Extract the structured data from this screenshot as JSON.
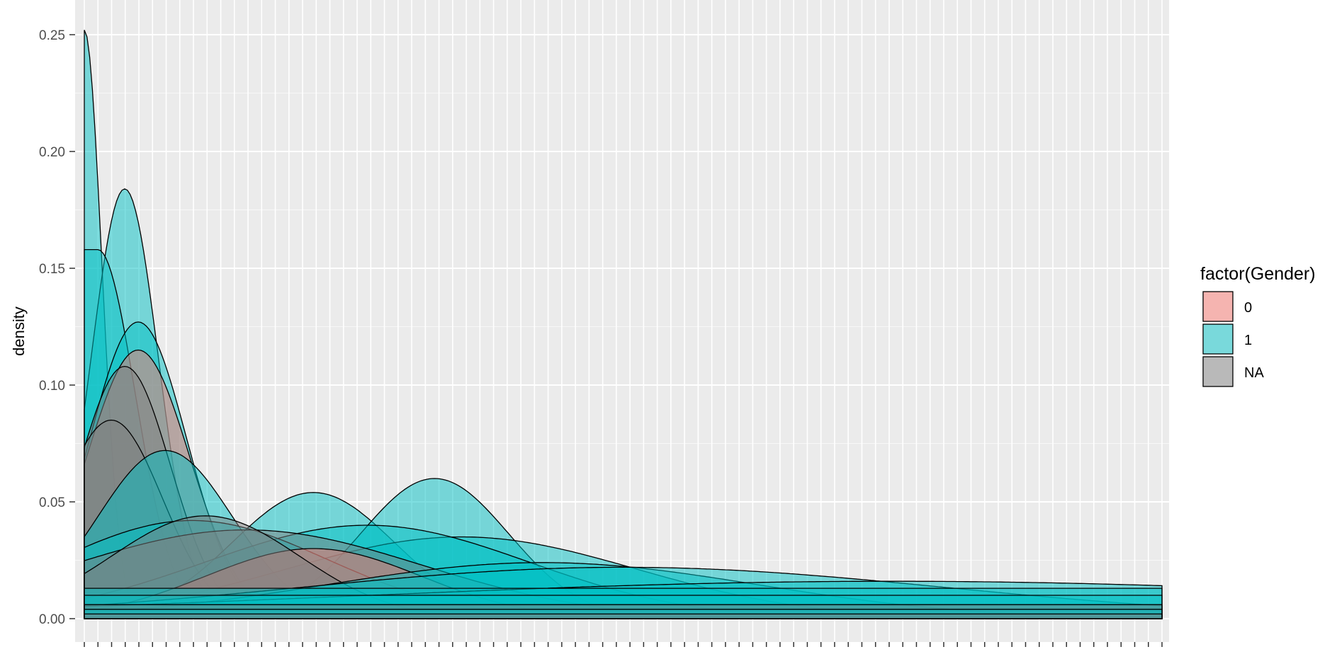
{
  "chart_data": {
    "type": "area",
    "subtype": "density",
    "ylabel": "density",
    "xlabel": "",
    "ylim": [
      0,
      0.262
    ],
    "y_ticks": [
      0.0,
      0.05,
      0.1,
      0.15,
      0.2,
      0.25
    ],
    "y_tick_labels": [
      "0.00",
      "0.05",
      "0.10",
      "0.15",
      "0.20",
      "0.25"
    ],
    "x_tick_count": 80,
    "x_tick_labels_visible": false,
    "grid": true,
    "legend": {
      "title": "factor(Gender)",
      "placement": "right",
      "entries": [
        {
          "label": "0",
          "color": "#F8766D"
        },
        {
          "label": "1",
          "color": "#00BFC4"
        },
        {
          "label": "NA",
          "color": "#7F7F7F"
        }
      ]
    },
    "series_note": "many overlapping per-category density curves filled by gender",
    "curves": [
      {
        "group": "1",
        "shape": "half",
        "center": 0,
        "width": 1.3,
        "peak": 0.252
      },
      {
        "group": "1",
        "shape": "gauss",
        "center": 3,
        "width": 2.5,
        "peak": 0.184
      },
      {
        "group": "1",
        "shape": "half",
        "center": 1,
        "width": 2.8,
        "peak": 0.158
      },
      {
        "group": "1",
        "shape": "gauss",
        "center": 4,
        "width": 3.6,
        "peak": 0.127
      },
      {
        "group": "0",
        "shape": "gauss",
        "center": 4,
        "width": 3.8,
        "peak": 0.115
      },
      {
        "group": "NA",
        "shape": "gauss",
        "center": 3,
        "width": 3.4,
        "peak": 0.108
      },
      {
        "group": "NA",
        "shape": "gauss",
        "center": 2,
        "width": 3.8,
        "peak": 0.085
      },
      {
        "group": "1",
        "shape": "gauss",
        "center": 6,
        "width": 5.0,
        "peak": 0.072
      },
      {
        "group": "1",
        "shape": "gauss",
        "center": 17,
        "width": 6.0,
        "peak": 0.054
      },
      {
        "group": "1",
        "shape": "gauss",
        "center": 26,
        "width": 5.5,
        "peak": 0.06
      },
      {
        "group": "1",
        "shape": "gauss",
        "center": 28,
        "width": 13,
        "peak": 0.035
      },
      {
        "group": "1",
        "shape": "gauss",
        "center": 21,
        "width": 12,
        "peak": 0.04
      },
      {
        "group": "1",
        "shape": "gauss",
        "center": 8,
        "width": 10,
        "peak": 0.042
      },
      {
        "group": "NA",
        "shape": "gauss",
        "center": 12,
        "width": 13,
        "peak": 0.038
      },
      {
        "group": "0",
        "shape": "gauss",
        "center": 17,
        "width": 8,
        "peak": 0.03
      },
      {
        "group": "NA",
        "shape": "gauss",
        "center": 9,
        "width": 7,
        "peak": 0.044
      },
      {
        "group": "1",
        "shape": "gauss",
        "center": 34,
        "width": 16,
        "peak": 0.024
      },
      {
        "group": "1",
        "shape": "gauss",
        "center": 40,
        "width": 24,
        "peak": 0.022
      },
      {
        "group": "1",
        "shape": "gauss",
        "center": 60,
        "width": 40,
        "peak": 0.016
      },
      {
        "group": "1",
        "shape": "flat",
        "start": 0,
        "end": 80,
        "level": 0.013
      },
      {
        "group": "1",
        "shape": "flat",
        "start": 0,
        "end": 80,
        "level": 0.01
      },
      {
        "group": "NA",
        "shape": "flat",
        "start": 0,
        "end": 80,
        "level": 0.006
      },
      {
        "group": "1",
        "shape": "flat",
        "start": 0,
        "end": 80,
        "level": 0.004
      },
      {
        "group": "NA",
        "shape": "flat",
        "start": 0,
        "end": 80,
        "level": 0.002
      }
    ],
    "x_range": [
      0,
      80
    ]
  }
}
